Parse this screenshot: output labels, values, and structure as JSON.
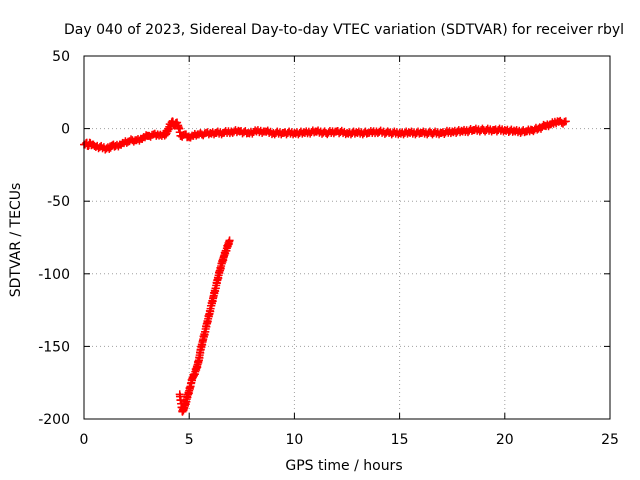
{
  "chart_data": {
    "type": "scatter",
    "title": "Day 040 of 2023, Sidereal Day-to-day VTEC variation (SDTVAR) for receiver rbyl",
    "xlabel": "GPS time / hours",
    "ylabel": "SDTVAR / TECUs",
    "xlim": [
      0,
      25
    ],
    "ylim": [
      -200,
      50
    ],
    "xticks": [
      0,
      5,
      10,
      15,
      20,
      25
    ],
    "yticks": [
      -200,
      -150,
      -100,
      -50,
      0,
      50
    ],
    "grid": true,
    "marker": "plus",
    "color": "#ff0000",
    "series": [
      {
        "x": [
          0.0,
          0.1,
          0.2,
          0.3,
          0.4,
          0.5,
          1.2,
          1.3,
          1.4,
          1.5,
          1.7,
          1.9,
          2.1,
          2.3,
          2.5,
          2.7,
          2.9,
          3.0,
          3.1,
          3.3,
          3.5,
          3.7,
          3.9,
          4.1,
          4.2,
          4.3,
          4.4,
          4.5,
          4.6,
          4.8,
          5.0,
          5.2,
          5.4,
          5.6,
          5.8,
          6.0,
          6.3,
          6.6,
          7.0,
          7.4,
          7.8,
          8.2,
          8.6,
          9.0,
          9.5,
          10.0,
          10.5,
          11.0,
          11.5,
          12.0,
          12.5,
          13.0,
          13.5,
          13.9,
          14.5,
          15.0,
          15.5,
          16.0,
          16.5,
          17.0,
          17.5,
          18.0,
          18.5,
          19.0,
          19.5,
          20.0,
          20.5,
          21.0,
          21.3,
          21.6,
          21.9,
          22.2,
          22.5,
          22.7,
          22.9
        ],
        "y": [
          -11,
          -10,
          -12,
          -10,
          -11,
          -12,
          -14,
          -12,
          -11,
          -12,
          -11,
          -10,
          -9,
          -8,
          -8,
          -7,
          -6,
          -5,
          -5,
          -4,
          -4,
          -5,
          -4,
          3,
          5,
          2,
          4,
          1,
          -5,
          -4,
          -6,
          -5,
          -4,
          -4,
          -3,
          -3,
          -3,
          -3,
          -2,
          -2,
          -3,
          -2,
          -2,
          -3,
          -3,
          -3,
          -3,
          -2,
          -3,
          -2,
          -3,
          -3,
          -3,
          -2,
          -3,
          -3,
          -3,
          -3,
          -3,
          -3,
          -2,
          -2,
          -1,
          -1,
          -1,
          -1,
          -2,
          -2,
          -1,
          0,
          2,
          3,
          5,
          4,
          5
        ]
      },
      {
        "x": [
          4.55,
          4.68,
          4.75,
          4.85,
          4.95,
          5.05,
          5.1,
          5.15,
          5.25,
          5.35,
          5.45,
          5.55,
          5.65,
          5.75,
          5.85,
          5.95,
          6.05,
          6.15,
          6.25,
          6.35,
          6.45,
          6.55,
          6.65,
          6.75,
          6.85,
          6.92
        ],
        "y": [
          -183,
          -195,
          -193,
          -188,
          -183,
          -178,
          -175,
          -172,
          -169,
          -165,
          -160,
          -152,
          -146,
          -140,
          -134,
          -128,
          -122,
          -116,
          -110,
          -104,
          -98,
          -93,
          -88,
          -84,
          -80,
          -77
        ]
      }
    ]
  }
}
